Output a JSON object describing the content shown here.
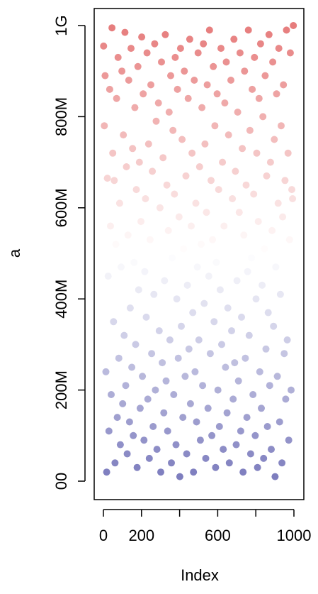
{
  "chart_data": {
    "type": "scatter",
    "title": "",
    "xlabel": "Index",
    "ylabel": "a",
    "xlim": [
      0,
      1000
    ],
    "ylim": [
      0,
      1000000000
    ],
    "x_ticks": [
      {
        "value": 0,
        "label": "0"
      },
      {
        "value": 200,
        "label": "200"
      },
      {
        "value": 400,
        "label": ""
      },
      {
        "value": 600,
        "label": "600"
      },
      {
        "value": 800,
        "label": ""
      },
      {
        "value": 1000,
        "label": "1000"
      }
    ],
    "y_ticks": [
      {
        "value": 0,
        "label": "00"
      },
      {
        "value": 200000000,
        "label": "200M"
      },
      {
        "value": 400000000,
        "label": "400M"
      },
      {
        "value": 600000000,
        "label": "600M"
      },
      {
        "value": 800000000,
        "label": "800M"
      },
      {
        "value": 1000000000,
        "label": "1G"
      }
    ],
    "grid": false,
    "color_scale": {
      "low": "#7b7bbd",
      "mid": "#ffffff",
      "high": "#e67c7c",
      "mapped_to": "y"
    },
    "series": [
      {
        "x": [
          1,
          5,
          9,
          13,
          17,
          21,
          25,
          29,
          33,
          37,
          41,
          45,
          49,
          53,
          57,
          61,
          65,
          69,
          73,
          77,
          81,
          85,
          89,
          93,
          97,
          101,
          105,
          109,
          113,
          117,
          121,
          125,
          129,
          133,
          137,
          141,
          145,
          149,
          153,
          157,
          161,
          165,
          169,
          173,
          177,
          181,
          185,
          189,
          193,
          197,
          201,
          205,
          209,
          213,
          217,
          221,
          225,
          229,
          233,
          237,
          241,
          245,
          249,
          253,
          257,
          261,
          265,
          269,
          273,
          277,
          281,
          285,
          289,
          293,
          297,
          301,
          305,
          309,
          313,
          317,
          321,
          325,
          329,
          333,
          337,
          341,
          345,
          349,
          353,
          357,
          361,
          365,
          369,
          373,
          377,
          381,
          385,
          389,
          393,
          397,
          401,
          405,
          409,
          413,
          417,
          421,
          425,
          429,
          433,
          437,
          441,
          445,
          449,
          453,
          457,
          461,
          465,
          469,
          473,
          477,
          481,
          485,
          489,
          493,
          497,
          501,
          505,
          509,
          513,
          517,
          521,
          525,
          529,
          533,
          537,
          541,
          545,
          549,
          553,
          557,
          561,
          565,
          569,
          573,
          577,
          581,
          585,
          589,
          593,
          597,
          601,
          605,
          609,
          613,
          617,
          621,
          625,
          629,
          633,
          637,
          641,
          645,
          649,
          653,
          657,
          661,
          665,
          669,
          673,
          677,
          681,
          685,
          689,
          693,
          697,
          701,
          705,
          709,
          713,
          717,
          721,
          725,
          729,
          733,
          737,
          741,
          745,
          749,
          753,
          757,
          761,
          765,
          769,
          773,
          777,
          781,
          785,
          789,
          793,
          797,
          801,
          805,
          809,
          813,
          817,
          821,
          825,
          829,
          833,
          837,
          841,
          845,
          849,
          853,
          857,
          861,
          865,
          869,
          873,
          877,
          881,
          885,
          889,
          893,
          897,
          901,
          905,
          909,
          913,
          917,
          921,
          925,
          929,
          933,
          937,
          941,
          945,
          949,
          953,
          957,
          961,
          965,
          969,
          973,
          977,
          981,
          985,
          989,
          993,
          997
        ],
        "y": [
          955000000,
          780000000,
          890000000,
          240000000,
          20000000,
          665000000,
          450000000,
          110000000,
          860000000,
          560000000,
          190000000,
          995000000,
          720000000,
          350000000,
          660000000,
          40000000,
          520000000,
          840000000,
          140000000,
          930000000,
          270000000,
          610000000,
          80000000,
          470000000,
          900000000,
          170000000,
          760000000,
          320000000,
          985000000,
          210000000,
          690000000,
          60000000,
          540000000,
          880000000,
          130000000,
          380000000,
          950000000,
          250000000,
          730000000,
          100000000,
          480000000,
          820000000,
          300000000,
          640000000,
          30000000,
          910000000,
          420000000,
          700000000,
          160000000,
          570000000,
          975000000,
          230000000,
          850000000,
          90000000,
          460000000,
          620000000,
          360000000,
          940000000,
          180000000,
          740000000,
          50000000,
          530000000,
          870000000,
          280000000,
          680000000,
          120000000,
          410000000,
          960000000,
          200000000,
          790000000,
          70000000,
          500000000,
          830000000,
          330000000,
          600000000,
          20000000,
          920000000,
          260000000,
          710000000,
          150000000,
          440000000,
          980000000,
          220000000,
          650000000,
          110000000,
          550000000,
          810000000,
          310000000,
          890000000,
          40000000,
          490000000,
          770000000,
          190000000,
          630000000,
          930000000,
          80000000,
          400000000,
          860000000,
          270000000,
          580000000,
          10000000,
          950000000,
          340000000,
          750000000,
          140000000,
          510000000,
          900000000,
          230000000,
          670000000,
          60000000,
          430000000,
          840000000,
          290000000,
          970000000,
          170000000,
          560000000,
          720000000,
          370000000,
          20000000,
          880000000,
          240000000,
          610000000,
          130000000,
          470000000,
          940000000,
          310000000,
          690000000,
          90000000,
          520000000,
          820000000,
          210000000,
          960000000,
          390000000,
          740000000,
          50000000,
          590000000,
          870000000,
          160000000,
          450000000,
          990000000,
          280000000,
          660000000,
          100000000,
          530000000,
          910000000,
          350000000,
          780000000,
          30000000,
          480000000,
          850000000,
          200000000,
          640000000,
          120000000,
          420000000,
          950000000,
          300000000,
          700000000,
          70000000,
          560000000,
          830000000,
          250000000,
          920000000,
          150000000,
          380000000,
          760000000,
          40000000,
          500000000,
          880000000,
          330000000,
          620000000,
          180000000,
          970000000,
          260000000,
          680000000,
          80000000,
          440000000,
          810000000,
          220000000,
          590000000,
          940000000,
          110000000,
          360000000,
          730000000,
          20000000,
          540000000,
          900000000,
          270000000,
          650000000,
          140000000,
          460000000,
          990000000,
          320000000,
          770000000,
          60000000,
          490000000,
          860000000,
          190000000,
          630000000,
          930000000,
          100000000,
          400000000,
          720000000,
          30000000,
          570000000,
          840000000,
          240000000,
          960000000,
          160000000,
          430000000,
          800000000,
          50000000,
          510000000,
          890000000,
          290000000,
          670000000,
          120000000,
          370000000,
          980000000,
          210000000,
          700000000,
          70000000,
          550000000,
          920000000,
          340000000,
          750000000,
          10000000,
          470000000,
          850000000,
          230000000,
          610000000,
          950000000,
          130000000,
          410000000,
          780000000,
          40000000,
          580000000,
          870000000,
          280000000,
          660000000,
          180000000,
          990000000,
          310000000,
          720000000,
          90000000,
          530000000,
          940000000,
          200000000,
          640000000,
          620000000,
          1000000000
        ]
      }
    ]
  }
}
